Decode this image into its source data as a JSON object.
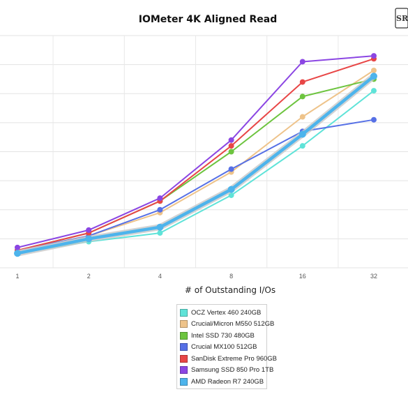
{
  "chart_data": {
    "type": "line",
    "title": "IOMeter 4K Aligned Read",
    "xlabel": "# of Outstanding I/Os",
    "ylabel": "",
    "categories": [
      "1",
      "2",
      "4",
      "8",
      "16",
      "32"
    ],
    "ylim": [
      0,
      80
    ],
    "grid": true,
    "legend_position": "bottom",
    "series": [
      {
        "name": "OCZ Vertex 460 240GB",
        "color": "#5fe3d8",
        "values": [
          5,
          9,
          12,
          25,
          42,
          61
        ]
      },
      {
        "name": "Crucial/Micron M550 512GB",
        "color": "#eec38a",
        "values": [
          6,
          11,
          19,
          33,
          52,
          68
        ]
      },
      {
        "name": "Intel SSD 730 480GB",
        "color": "#6dc43f",
        "values": [
          6,
          12,
          23,
          40,
          59,
          65
        ]
      },
      {
        "name": "Crucial MX100 512GB",
        "color": "#5670e6",
        "values": [
          6,
          11,
          20,
          34,
          47,
          51
        ]
      },
      {
        "name": "SanDisk Extreme Pro 960GB",
        "color": "#e84646",
        "values": [
          6,
          12,
          23,
          42,
          64,
          72
        ]
      },
      {
        "name": "Samsung SSD 850 Pro 1TB",
        "color": "#8b46e3",
        "values": [
          7,
          13,
          24,
          44,
          71,
          73
        ]
      },
      {
        "name": "AMD Radeon R7 240GB",
        "color": "#4db4ec",
        "values": [
          5,
          10,
          14,
          27,
          46,
          66
        ]
      }
    ]
  },
  "logo": {
    "text": "SR"
  }
}
